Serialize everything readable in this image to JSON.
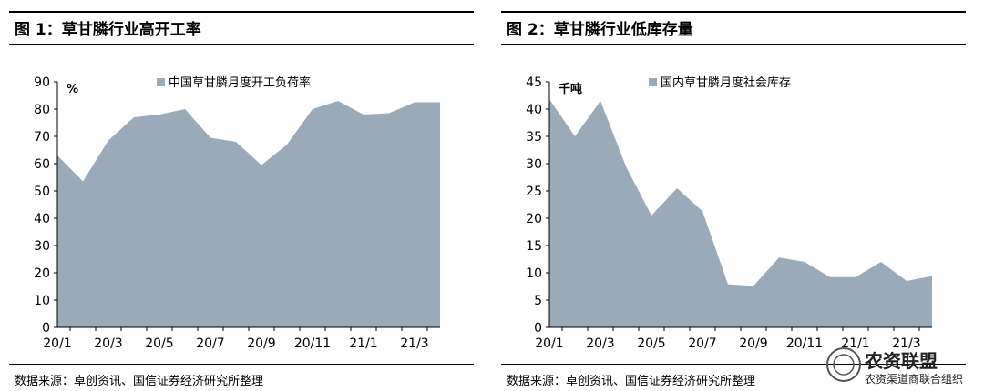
{
  "chart_data": [
    {
      "type": "area",
      "title": "图 1：草甘膦行业高开工率",
      "source": "数据来源：卓创资讯、国信证券经济研究所整理",
      "ylabel": "%",
      "ylim": [
        0,
        90
      ],
      "yticks": [
        0,
        10,
        20,
        30,
        40,
        50,
        60,
        70,
        80,
        90
      ],
      "tick_labels": [
        "20/1",
        "20/3",
        "20/5",
        "20/7",
        "20/9",
        "20/11",
        "21/1",
        "21/3"
      ],
      "legend": "top-center",
      "grid": false,
      "series": [
        {
          "name": "中国草甘膦月度开工负荷率",
          "color": "#9aaab9",
          "values": [
            63,
            53.5,
            68.5,
            77,
            78,
            80,
            69.5,
            68,
            59.5,
            67,
            80,
            83,
            78,
            78.5,
            82.5,
            82.5
          ]
        }
      ]
    },
    {
      "type": "area",
      "title": "图 2：草甘膦行业低库存量",
      "source": "数据来源：卓创资讯、国信证券经济研究所整理",
      "ylabel": "千吨",
      "ylim": [
        0,
        45
      ],
      "yticks": [
        0,
        5,
        10,
        15,
        20,
        25,
        30,
        35,
        40,
        45
      ],
      "tick_labels": [
        "20/1",
        "20/3",
        "20/5",
        "20/7",
        "20/9",
        "20/11",
        "21/1",
        "21/3"
      ],
      "legend": "top-center",
      "grid": false,
      "series": [
        {
          "name": "国内草甘膦月度社会库存",
          "color": "#9aaab9",
          "values": [
            41.8,
            35,
            41.5,
            29.5,
            20.5,
            25.5,
            21.3,
            7.9,
            7.6,
            12.8,
            12,
            9.2,
            9.2,
            12,
            8.5,
            9.4
          ]
        }
      ]
    }
  ],
  "watermark": {
    "line1": "农资联盟",
    "line2": "农资渠道商联合组织"
  }
}
